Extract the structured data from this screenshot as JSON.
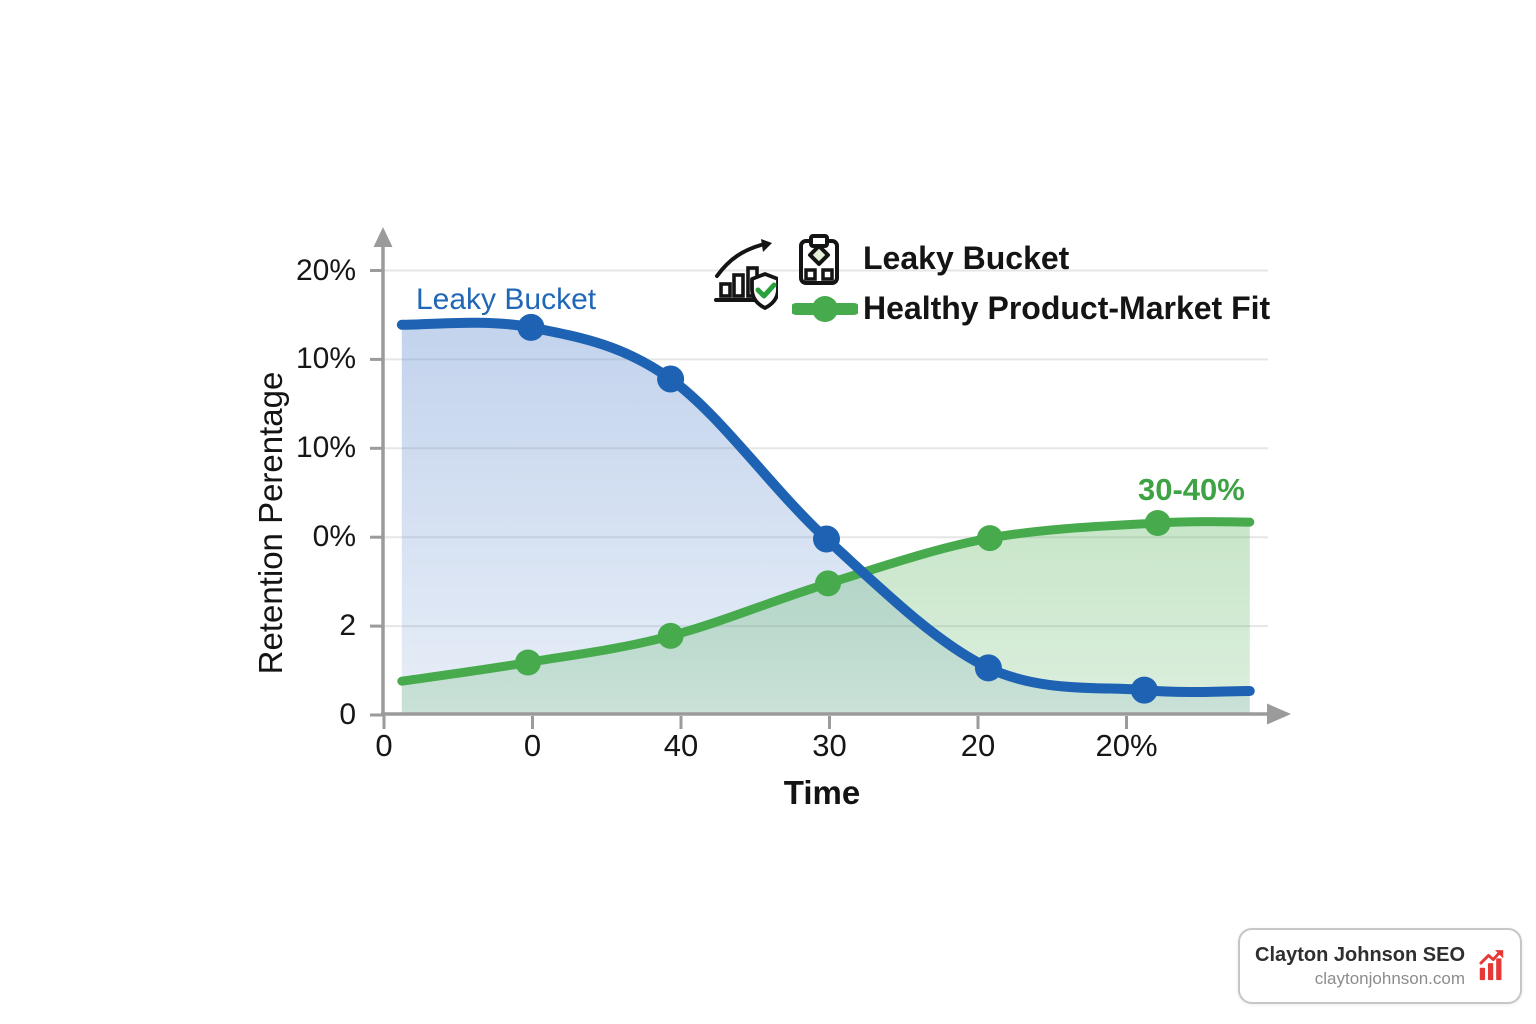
{
  "page": {
    "background": "#FFFFFF"
  },
  "chart_data": {
    "type": "line",
    "title": "",
    "xlabel": "Time",
    "ylabel": "Retention Perentage",
    "x_ticks": [
      "0",
      "0",
      "40",
      "30",
      "20",
      "20%"
    ],
    "y_ticks_bottom_to_top": [
      "0",
      "2",
      "0%",
      "10%",
      "10%",
      "20%"
    ],
    "grid": true,
    "grid_color": "#E6E6E6",
    "axis_color": "#9B9B9B",
    "value_units": "tick-intervals",
    "series": [
      {
        "name": "Leaky Bucket",
        "color": "#1E62B4",
        "fill": "#6E96D2",
        "fill_opacity_top": 0.42,
        "fill_opacity_bottom": 0.16,
        "line_width": 10,
        "marker_radius": 13.5,
        "x": [
          0.12,
          0.99,
          1.93,
          2.98,
          4.07,
          5.12,
          5.83
        ],
        "y": [
          4.39,
          4.36,
          3.78,
          1.98,
          0.53,
          0.28,
          0.27
        ],
        "marker_indices": [
          1,
          2,
          3,
          4,
          5
        ]
      },
      {
        "name": "Healthy Product-Market Fit",
        "color": "#47AB4D",
        "fill": "#52AF57",
        "fill_opacity_top": 0.32,
        "fill_opacity_bottom": 0.2,
        "line_width": 9,
        "marker_radius": 13,
        "x": [
          0.12,
          0.97,
          1.93,
          2.99,
          4.08,
          5.21,
          5.83
        ],
        "y": [
          0.38,
          0.59,
          0.89,
          1.48,
          1.99,
          2.16,
          2.17
        ],
        "marker_indices": [
          1,
          2,
          3,
          4,
          5
        ]
      }
    ],
    "annotations": [
      {
        "text": "Leaky Bucket",
        "color": "#2067B8",
        "anchor": "above-blue-line-left"
      },
      {
        "text": "30-40%",
        "color": "#3EA344",
        "anchor": "above-green-line-right"
      }
    ],
    "legend": {
      "position": "top-right",
      "decoration_icon": "growth-chart-shield-icon",
      "entries": [
        {
          "label": "Leaky Bucket",
          "icon": "bucket-icon"
        },
        {
          "label": "Healthy Product-Market Fit",
          "icon": "green-line-marker-icon"
        }
      ]
    }
  },
  "branding_card": {
    "title": "Clayton Johnson SEO",
    "url": "claytonjohnson.com",
    "icon": "red-rising-bars-icon",
    "icon_color": "#E53935"
  }
}
